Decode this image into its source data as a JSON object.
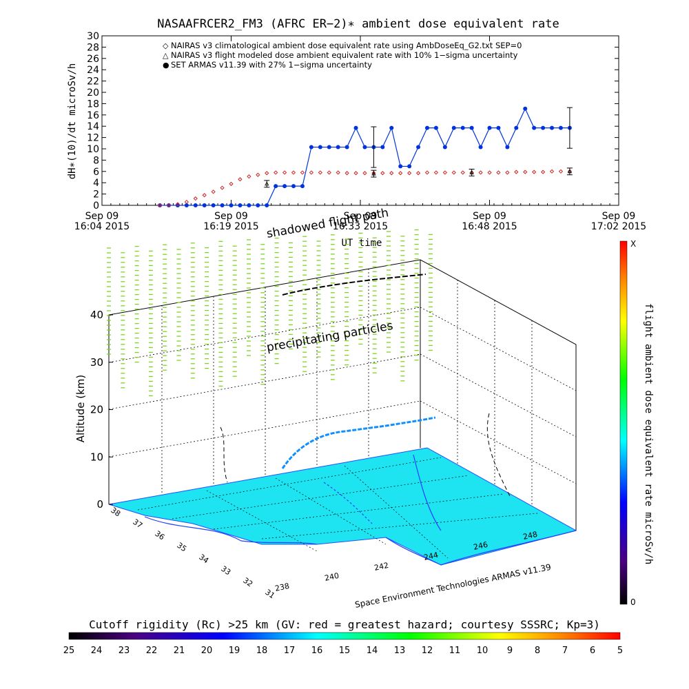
{
  "colors": {
    "armas": "#0033dd",
    "nairas_clim": "#cc2222",
    "nairas_flight": "#000000",
    "precip": "#7fd320",
    "ground": "#1ee3f0"
  },
  "chart_data": [
    {
      "type": "scatter",
      "title": "NASAAFRCER2_FM3 (AFRC ER−2)∗ ambient dose equivalent rate",
      "ylabel": "dH∗(10)/dt microSv/h",
      "xlabel": "UT time",
      "ylim": [
        0,
        30
      ],
      "yticks": [
        "0",
        "2",
        "4",
        "6",
        "8",
        "10",
        "12",
        "14",
        "16",
        "18",
        "20",
        "22",
        "24",
        "26",
        "28",
        "30"
      ],
      "xticks": [
        {
          "top": "Sep 09",
          "bottom": "16:04 2015"
        },
        {
          "top": "Sep 09",
          "bottom": "16:19 2015"
        },
        {
          "top": "Sep 09",
          "bottom": "16:33 2015"
        },
        {
          "top": "Sep 09",
          "bottom": "16:48 2015"
        },
        {
          "top": "Sep 09",
          "bottom": "17:02 2015"
        }
      ],
      "xlim": [
        0,
        58
      ],
      "legend": [
        {
          "symbol": "◇",
          "color": "#cc2222",
          "label": "NAIRAS v3 climatological ambient dose equivalent rate using AmbDoseEq_G2.txt SEP=0"
        },
        {
          "symbol": "△",
          "color": "#000000",
          "label": "NAIRAS v3 flight modeled dose ambient equivalent rate with 10% 1−sigma uncertainty"
        },
        {
          "symbol": "●",
          "color": "#0033dd",
          "label": "SET ARMAS v11.39 with 27% 1−sigma uncertainty"
        }
      ],
      "legend_position": "top",
      "series": [
        {
          "name": "SET ARMAS v11.39 with 27% 1−sigma uncertainty",
          "x": [
            6.5,
            7.5,
            8.5,
            9.5,
            10.5,
            11.5,
            12.5,
            13.5,
            14.5,
            15.5,
            16.5,
            17.5,
            18.5,
            19.5,
            20.5,
            21.5,
            22.5,
            23.5,
            24.5,
            25.5,
            26.5,
            27.5,
            28.5,
            29.5,
            30.5,
            31.5,
            32.5,
            33.5,
            34.5,
            35.5,
            36.5,
            37.5,
            38.5,
            39.5,
            40.5,
            41.5,
            42.5,
            43.5,
            44.5,
            45.5,
            46.5,
            47.5,
            48.5,
            49.5,
            50.5,
            51.5,
            52.5
          ],
          "y": [
            0,
            0,
            0,
            0,
            0,
            0,
            0,
            0,
            0,
            0,
            0,
            0,
            0,
            3.4,
            3.4,
            3.4,
            3.4,
            10.3,
            10.3,
            10.3,
            10.3,
            10.3,
            13.7,
            10.3,
            10.3,
            10.3,
            13.7,
            6.9,
            6.9,
            10.3,
            13.7,
            13.7,
            10.3,
            13.7,
            13.7,
            13.7,
            10.3,
            13.7,
            13.7,
            10.3,
            13.7,
            17.1,
            13.7,
            13.7,
            13.7,
            13.7,
            13.7
          ],
          "error_bars_at": [
            30.5,
            52.5
          ],
          "error_halfwidth": 3.6
        },
        {
          "name": "NAIRAS v3 climatological ambient dose equivalent rate using AmbDoseEq_G2.txt SEP=0",
          "x": [
            6.5,
            7.5,
            8.5,
            9.5,
            10.5,
            11.5,
            12.5,
            13.5,
            14.5,
            15.5,
            16.5,
            17.5,
            18.5,
            19.5,
            20.5,
            21.5,
            22.5,
            23.5,
            24.5,
            25.5,
            26.5,
            27.5,
            28.5,
            29.5,
            30.5,
            31.5,
            32.5,
            33.5,
            34.5,
            35.5,
            36.5,
            37.5,
            38.5,
            39.5,
            40.5,
            41.5,
            42.5,
            43.5,
            44.5,
            45.5,
            46.5,
            47.5,
            48.5,
            49.5,
            50.5,
            51.5,
            52.5
          ],
          "y": [
            0,
            0,
            0.2,
            0.6,
            1.2,
            1.8,
            2.4,
            3.1,
            3.8,
            4.6,
            5.1,
            5.4,
            5.7,
            5.8,
            5.8,
            5.8,
            5.8,
            5.8,
            5.8,
            5.8,
            5.8,
            5.7,
            5.7,
            5.7,
            5.7,
            5.7,
            5.7,
            5.7,
            5.7,
            5.7,
            5.8,
            5.8,
            5.8,
            5.8,
            5.8,
            5.8,
            5.8,
            5.8,
            5.8,
            5.8,
            5.9,
            5.9,
            5.9,
            5.9,
            6.0,
            6.0,
            6.0
          ]
        },
        {
          "name": "NAIRAS v3 flight modeled dose ambient equivalent rate with 10% 1−sigma uncertainty",
          "x": [
            18.5,
            30.5,
            41.5,
            52.5
          ],
          "y": [
            3.8,
            5.6,
            5.8,
            6.0
          ],
          "error_halfwidth": 0.6
        }
      ]
    },
    {
      "type": "heatmap",
      "zlabel": "Altitude (km)",
      "zticks": [
        "0",
        "10",
        "20",
        "30",
        "40"
      ],
      "lat_ticks": [
        "38",
        "37",
        "36",
        "35",
        "34",
        "33",
        "32",
        "31"
      ],
      "lon_ticks": [
        "238",
        "240",
        "242",
        "244",
        "246",
        "248"
      ],
      "annotations": [
        "shadowed flight path",
        "precipitating particles"
      ],
      "credit": "Space Environment Technologies ARMAS v11.39",
      "colorbar": {
        "label": "flight ambient dose equivalent rate microSv/h",
        "top_label": "X",
        "bottom_label": "0"
      },
      "bottom_colorbar": {
        "label": "Cutoff rigidity (Rc) >25 km (GV: red = greatest hazard; courtesy SSSRC; Kp=3)",
        "ticks": [
          "25",
          "24",
          "23",
          "22",
          "21",
          "20",
          "19",
          "18",
          "17",
          "16",
          "15",
          "14",
          "13",
          "12",
          "11",
          "10",
          "9",
          "8",
          "7",
          "6",
          "5"
        ]
      }
    }
  ]
}
